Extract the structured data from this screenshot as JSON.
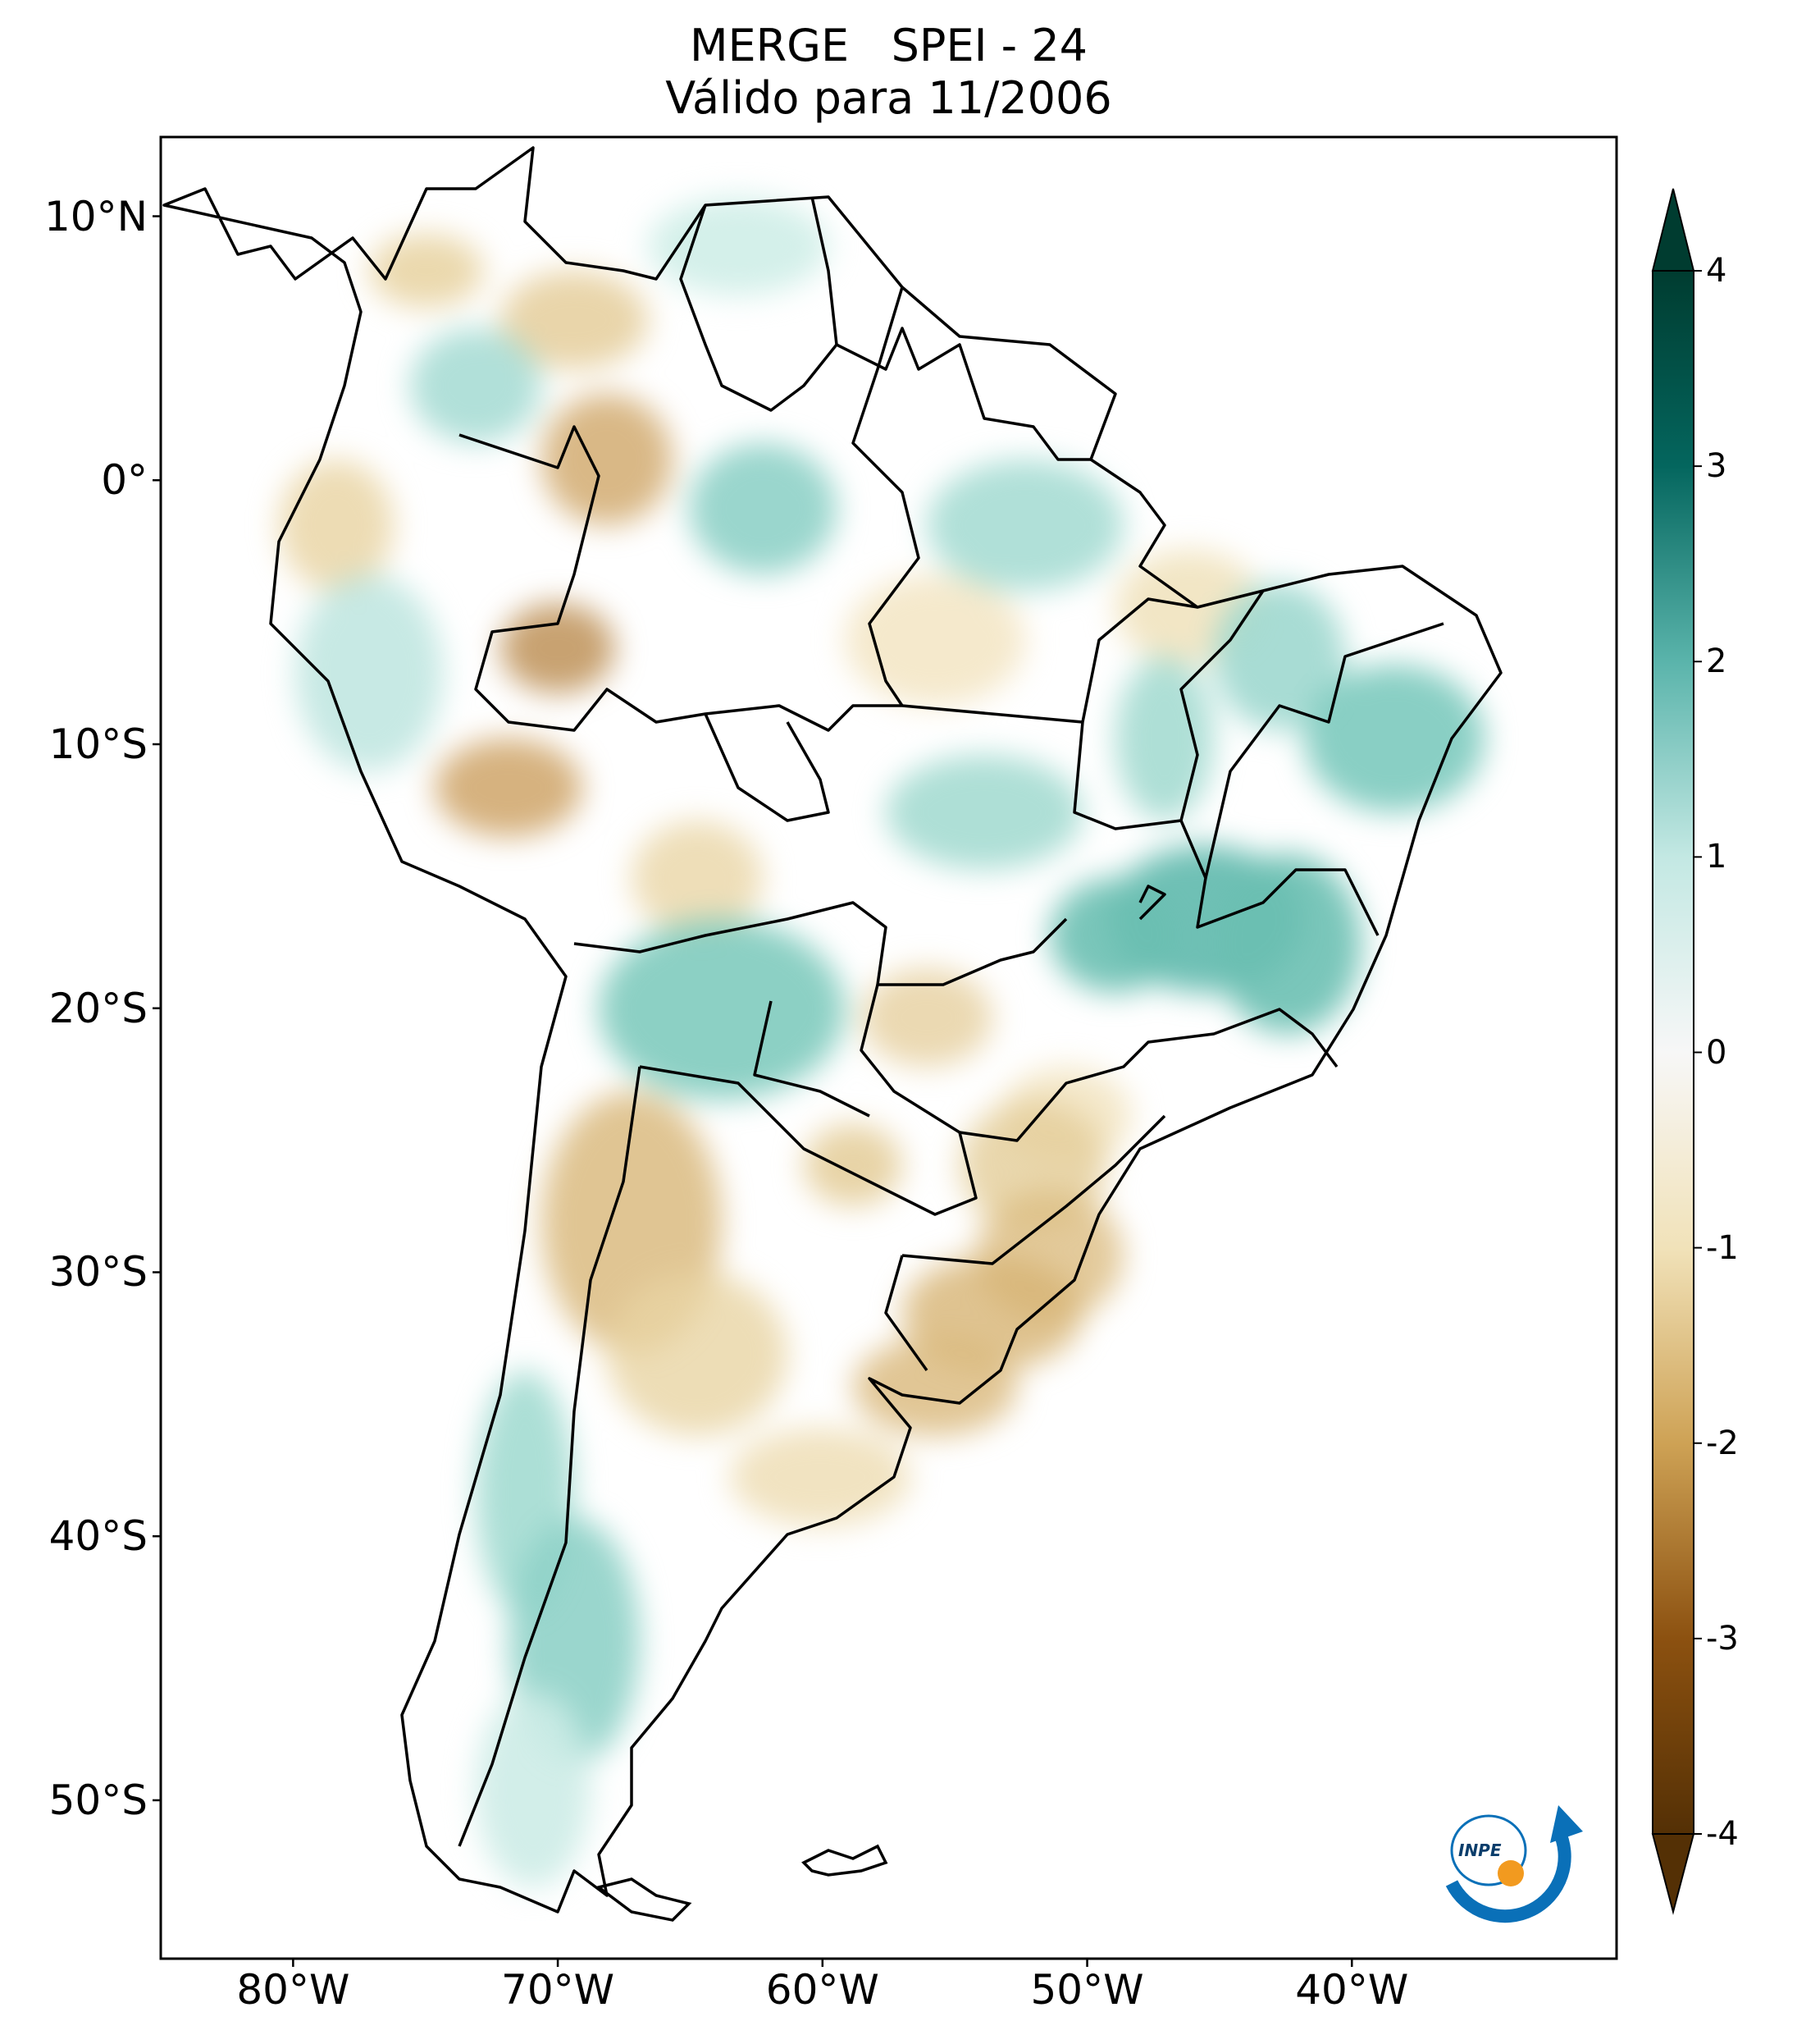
{
  "title": {
    "line1": "MERGE   SPEI - 24",
    "line2": "Válido para 11/2006"
  },
  "map": {
    "lat_range": [
      -56,
      13
    ],
    "lon_range": [
      -85,
      -30
    ],
    "lat_ticks": [
      {
        "value": 10,
        "label": "10°N"
      },
      {
        "value": 0,
        "label": "0°"
      },
      {
        "value": -10,
        "label": "10°S"
      },
      {
        "value": -20,
        "label": "20°S"
      },
      {
        "value": -30,
        "label": "30°S"
      },
      {
        "value": -40,
        "label": "40°S"
      },
      {
        "value": -50,
        "label": "50°S"
      }
    ],
    "lon_ticks": [
      {
        "value": -80,
        "label": "80°W"
      },
      {
        "value": -70,
        "label": "70°W"
      },
      {
        "value": -60,
        "label": "60°W"
      },
      {
        "value": -50,
        "label": "50°W"
      },
      {
        "value": -40,
        "label": "40°W"
      }
    ]
  },
  "colorbar": {
    "min": -4,
    "max": 4,
    "ticks": [
      "4",
      "3",
      "2",
      "1",
      "0",
      "-1",
      "-2",
      "-3",
      "-4"
    ],
    "colors": {
      "-4": "#543005",
      "-3": "#8c5110",
      "-2": "#cea255",
      "-1": "#f1e2b9",
      "0": "#f7f7f7",
      "1": "#c3e8e3",
      "2": "#5ab4ab",
      "3": "#04665e",
      "4": "#003c30"
    }
  },
  "logo": {
    "text": "INPE",
    "colors": {
      "blue": "#0a70b8",
      "orange": "#f29a1f"
    }
  }
}
